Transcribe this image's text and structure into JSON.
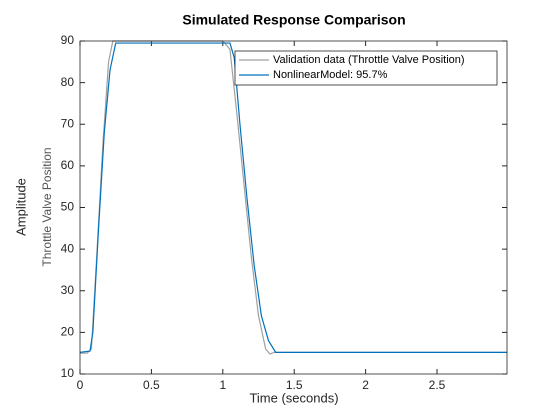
{
  "chart_data": {
    "type": "line",
    "title": "Simulated Response Comparison",
    "xlabel": "Time (seconds)",
    "ylabel": "Amplitude",
    "ylabel_channel": "Throttle Valve Position",
    "xlim": [
      0,
      2.99
    ],
    "xticks": [
      0,
      0.5,
      1,
      1.5,
      2,
      2.5
    ],
    "ylim": [
      10,
      90
    ],
    "yticks": [
      10,
      20,
      30,
      40,
      50,
      60,
      70,
      80,
      90
    ],
    "legend": "upper right",
    "series": [
      {
        "name": "Validation data (Throttle Valve Position)",
        "color": "#a0a0a0",
        "x": [
          0,
          0.05,
          0.08,
          0.12,
          0.16,
          0.2,
          0.23,
          0.6,
          1.0,
          1.05,
          1.1,
          1.15,
          1.2,
          1.25,
          1.3,
          1.33,
          1.36,
          2.99
        ],
        "values": [
          15,
          15,
          16,
          40,
          65,
          85,
          90,
          90,
          90,
          88,
          72,
          55,
          38,
          24,
          16,
          14.8,
          15.2,
          15.2
        ]
      },
      {
        "name": "NonlinearModel: 95.7%",
        "color": "#0072bd",
        "x": [
          0,
          0.07,
          0.09,
          0.13,
          0.17,
          0.21,
          0.25,
          0.6,
          1.05,
          1.08,
          1.12,
          1.17,
          1.22,
          1.27,
          1.32,
          1.37,
          2.99
        ],
        "values": [
          15.2,
          15.5,
          20,
          45,
          68,
          83,
          89.5,
          89.5,
          89.5,
          86,
          70,
          52,
          36,
          24,
          18,
          15.2,
          15.2
        ]
      }
    ]
  }
}
